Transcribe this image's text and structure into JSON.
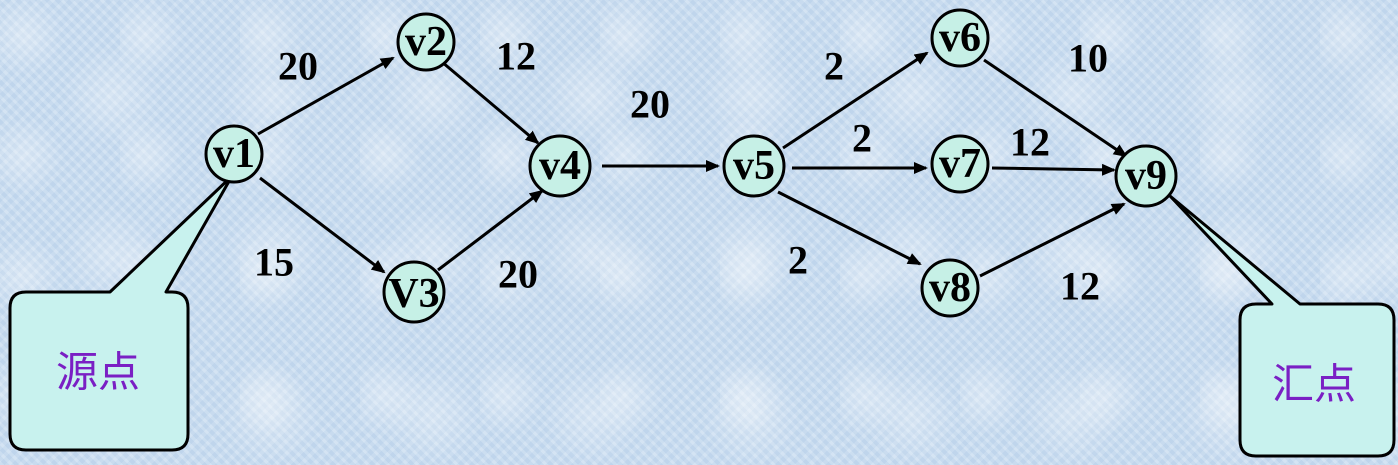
{
  "nodes": {
    "v1": "v1",
    "v2": "v2",
    "v3": "V3",
    "v4": "v4",
    "v5": "v5",
    "v6": "v6",
    "v7": "v7",
    "v8": "v8",
    "v9": "v9"
  },
  "edges": [
    {
      "from": "v1",
      "to": "v2",
      "weight": "20"
    },
    {
      "from": "v2",
      "to": "v4",
      "weight": "12"
    },
    {
      "from": "v1",
      "to": "v3",
      "weight": "15"
    },
    {
      "from": "v3",
      "to": "v4",
      "weight": "20"
    },
    {
      "from": "v4",
      "to": "v5",
      "weight": "20"
    },
    {
      "from": "v5",
      "to": "v6",
      "weight": "2"
    },
    {
      "from": "v5",
      "to": "v7",
      "weight": "2"
    },
    {
      "from": "v5",
      "to": "v8",
      "weight": "2"
    },
    {
      "from": "v6",
      "to": "v9",
      "weight": "10"
    },
    {
      "from": "v7",
      "to": "v9",
      "weight": "12"
    },
    {
      "from": "v8",
      "to": "v9",
      "weight": "12"
    }
  ],
  "callouts": {
    "source_label": "源点",
    "sink_label": "汇点"
  },
  "colors": {
    "node_fill": "#c6f0e6",
    "callout_fill": "#c8f2ee",
    "callout_text": "#7a1fc4",
    "background": "#c8dcf0"
  }
}
